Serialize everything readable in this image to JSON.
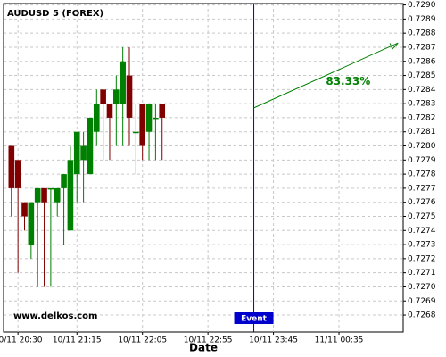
{
  "chart_data": {
    "type": "candlestick",
    "title": "AUDUSD 5 (FOREX)",
    "watermark": "www.delkos.com",
    "xlabel": "Date",
    "x": [
      "10/11 20:25",
      "10/11 20:30",
      "10/11 20:35",
      "10/11 20:40",
      "10/11 20:45",
      "10/11 20:50",
      "10/11 20:55",
      "10/11 21:00",
      "10/11 21:05",
      "10/11 21:10",
      "10/11 21:15",
      "10/11 21:20",
      "10/11 21:25",
      "10/11 21:30",
      "10/11 21:35",
      "10/11 21:40",
      "10/11 21:45",
      "10/11 21:50",
      "10/11 21:55",
      "10/11 22:00",
      "10/11 22:05",
      "10/11 22:10",
      "10/11 22:15",
      "10/11 22:20"
    ],
    "open": [
      0.728,
      0.7279,
      0.7276,
      0.7273,
      0.7276,
      0.7277,
      0.7277,
      0.7276,
      0.7277,
      0.7274,
      0.7278,
      0.7279,
      0.7278,
      0.7281,
      0.7284,
      0.7283,
      0.7283,
      0.7283,
      0.7285,
      0.7281,
      0.7283,
      0.7281,
      0.7282,
      0.7283
    ],
    "high": [
      0.728,
      0.7279,
      0.7276,
      0.7276,
      0.7277,
      0.7277,
      0.7277,
      0.7277,
      0.7278,
      0.728,
      0.7281,
      0.7281,
      0.7282,
      0.7284,
      0.7284,
      0.7283,
      0.7285,
      0.7287,
      0.7287,
      0.7283,
      0.7283,
      0.7283,
      0.7283,
      0.7283
    ],
    "low": [
      0.7275,
      0.7271,
      0.7274,
      0.7272,
      0.727,
      0.727,
      0.727,
      0.7275,
      0.7273,
      0.7274,
      0.7276,
      0.7276,
      0.7278,
      0.728,
      0.7279,
      0.7279,
      0.728,
      0.728,
      0.728,
      0.7278,
      0.7279,
      0.7279,
      0.7279,
      0.7279
    ],
    "close": [
      0.7277,
      0.7277,
      0.7275,
      0.7276,
      0.7277,
      0.7276,
      0.7277,
      0.7277,
      0.7278,
      0.7279,
      0.7281,
      0.728,
      0.7282,
      0.7283,
      0.7283,
      0.7282,
      0.7284,
      0.7286,
      0.7282,
      0.7281,
      0.728,
      0.7283,
      0.7282,
      0.7282
    ],
    "up_color": "#008000",
    "down_color": "#800000",
    "xlim": [
      "10/11 20:19",
      "11/11 01:24"
    ],
    "xticks": [
      "10/11 20:30",
      "10/11 21:15",
      "10/11 22:05",
      "10/11 22:55",
      "10/11 23:45",
      "11/11 00:35"
    ],
    "ylim": [
      0.72668,
      0.72901
    ],
    "yticks": [
      0.7268,
      0.7269,
      {
        "value": 0.727,
        "label": "0.7270"
      },
      0.7271,
      0.7272,
      0.7273,
      0.7274,
      0.7275,
      0.7276,
      0.7277,
      0.7278,
      0.7279,
      {
        "value": 0.728,
        "label": "0.7280"
      },
      0.7281,
      0.7282,
      0.7283,
      0.7284,
      0.7285,
      0.7286,
      0.7287,
      0.7288,
      0.7289,
      {
        "value": 0.729,
        "label": "0.7290"
      }
    ],
    "grid": true,
    "event": {
      "x": "10/11 23:30",
      "label": "Event",
      "color": "#0000cc"
    },
    "arrow": {
      "start": {
        "x": "10/11 23:30",
        "y": 0.72827
      },
      "end": {
        "x": "11/11 01:20",
        "y": 0.72873
      },
      "label": "83.33%",
      "color": "#008000"
    }
  }
}
